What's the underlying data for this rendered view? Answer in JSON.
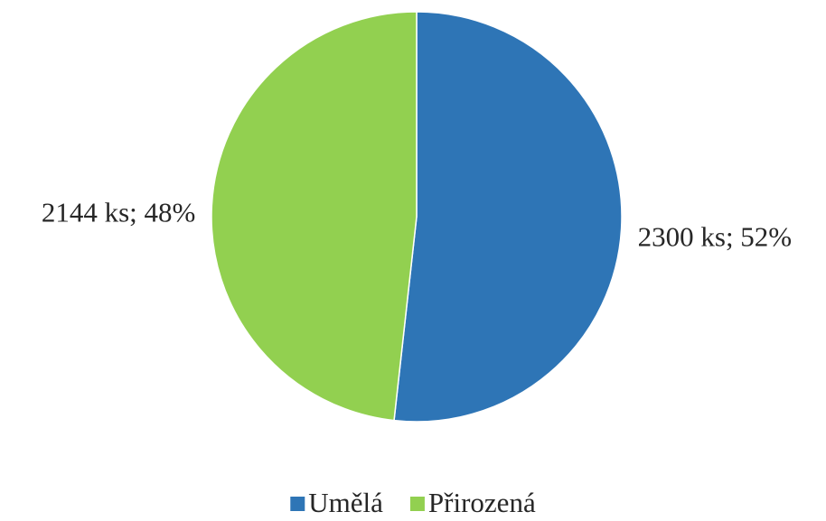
{
  "chart_data": {
    "type": "pie",
    "categories": [
      "Umělá",
      "Přirozená"
    ],
    "values": [
      2300,
      2144
    ],
    "value_labels": [
      "2300 ks; 52%",
      "2144 ks; 48%"
    ],
    "colors": [
      "#2e75b6",
      "#92d050"
    ],
    "legend": "bottom"
  }
}
